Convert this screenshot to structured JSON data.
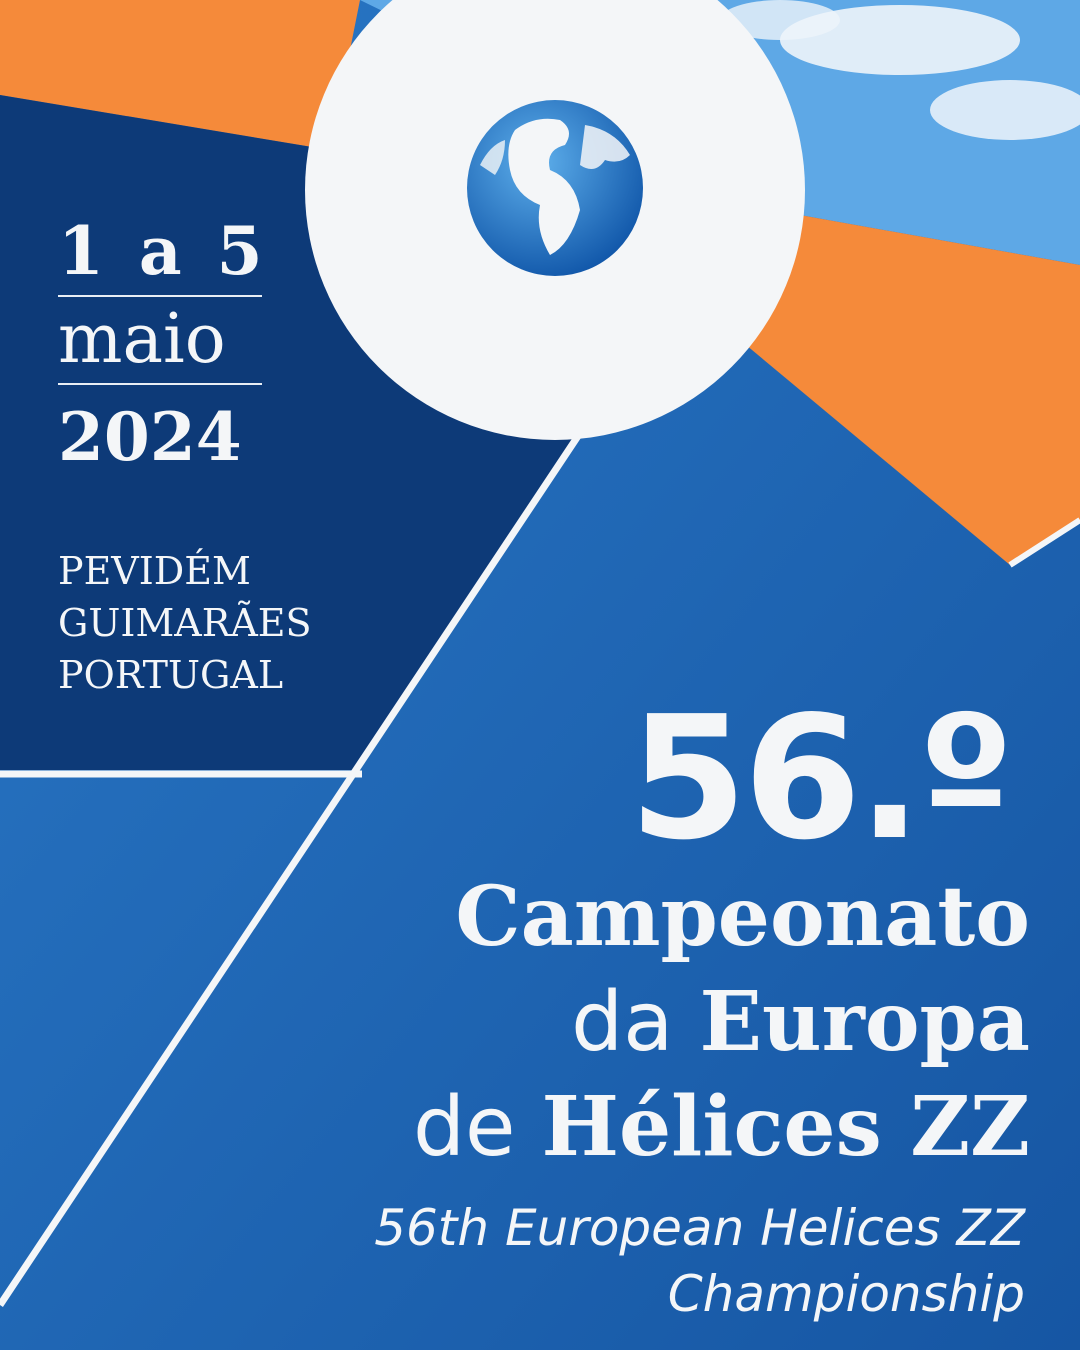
{
  "poster": {
    "date_days": "1 a 5",
    "date_month": "maio",
    "date_year": "2024",
    "location": [
      "PEVIDÉM",
      "GUIMARÃES",
      "PORTUGAL"
    ],
    "edition": "56.º",
    "title_line1": "Campeonato",
    "title_line2_light": "da",
    "title_line2_bold": "Europa",
    "title_line3_light": "de",
    "title_line3_bold": "Hélices ZZ",
    "subtitle_line1": "56th European Helices ZZ",
    "subtitle_line2": "Championship"
  },
  "colors": {
    "blue": "#1b63b0",
    "navy": "#0d3a78",
    "orange": "#f58a3a",
    "white": "#f4f6f8",
    "sky": "#5ea8e6"
  }
}
